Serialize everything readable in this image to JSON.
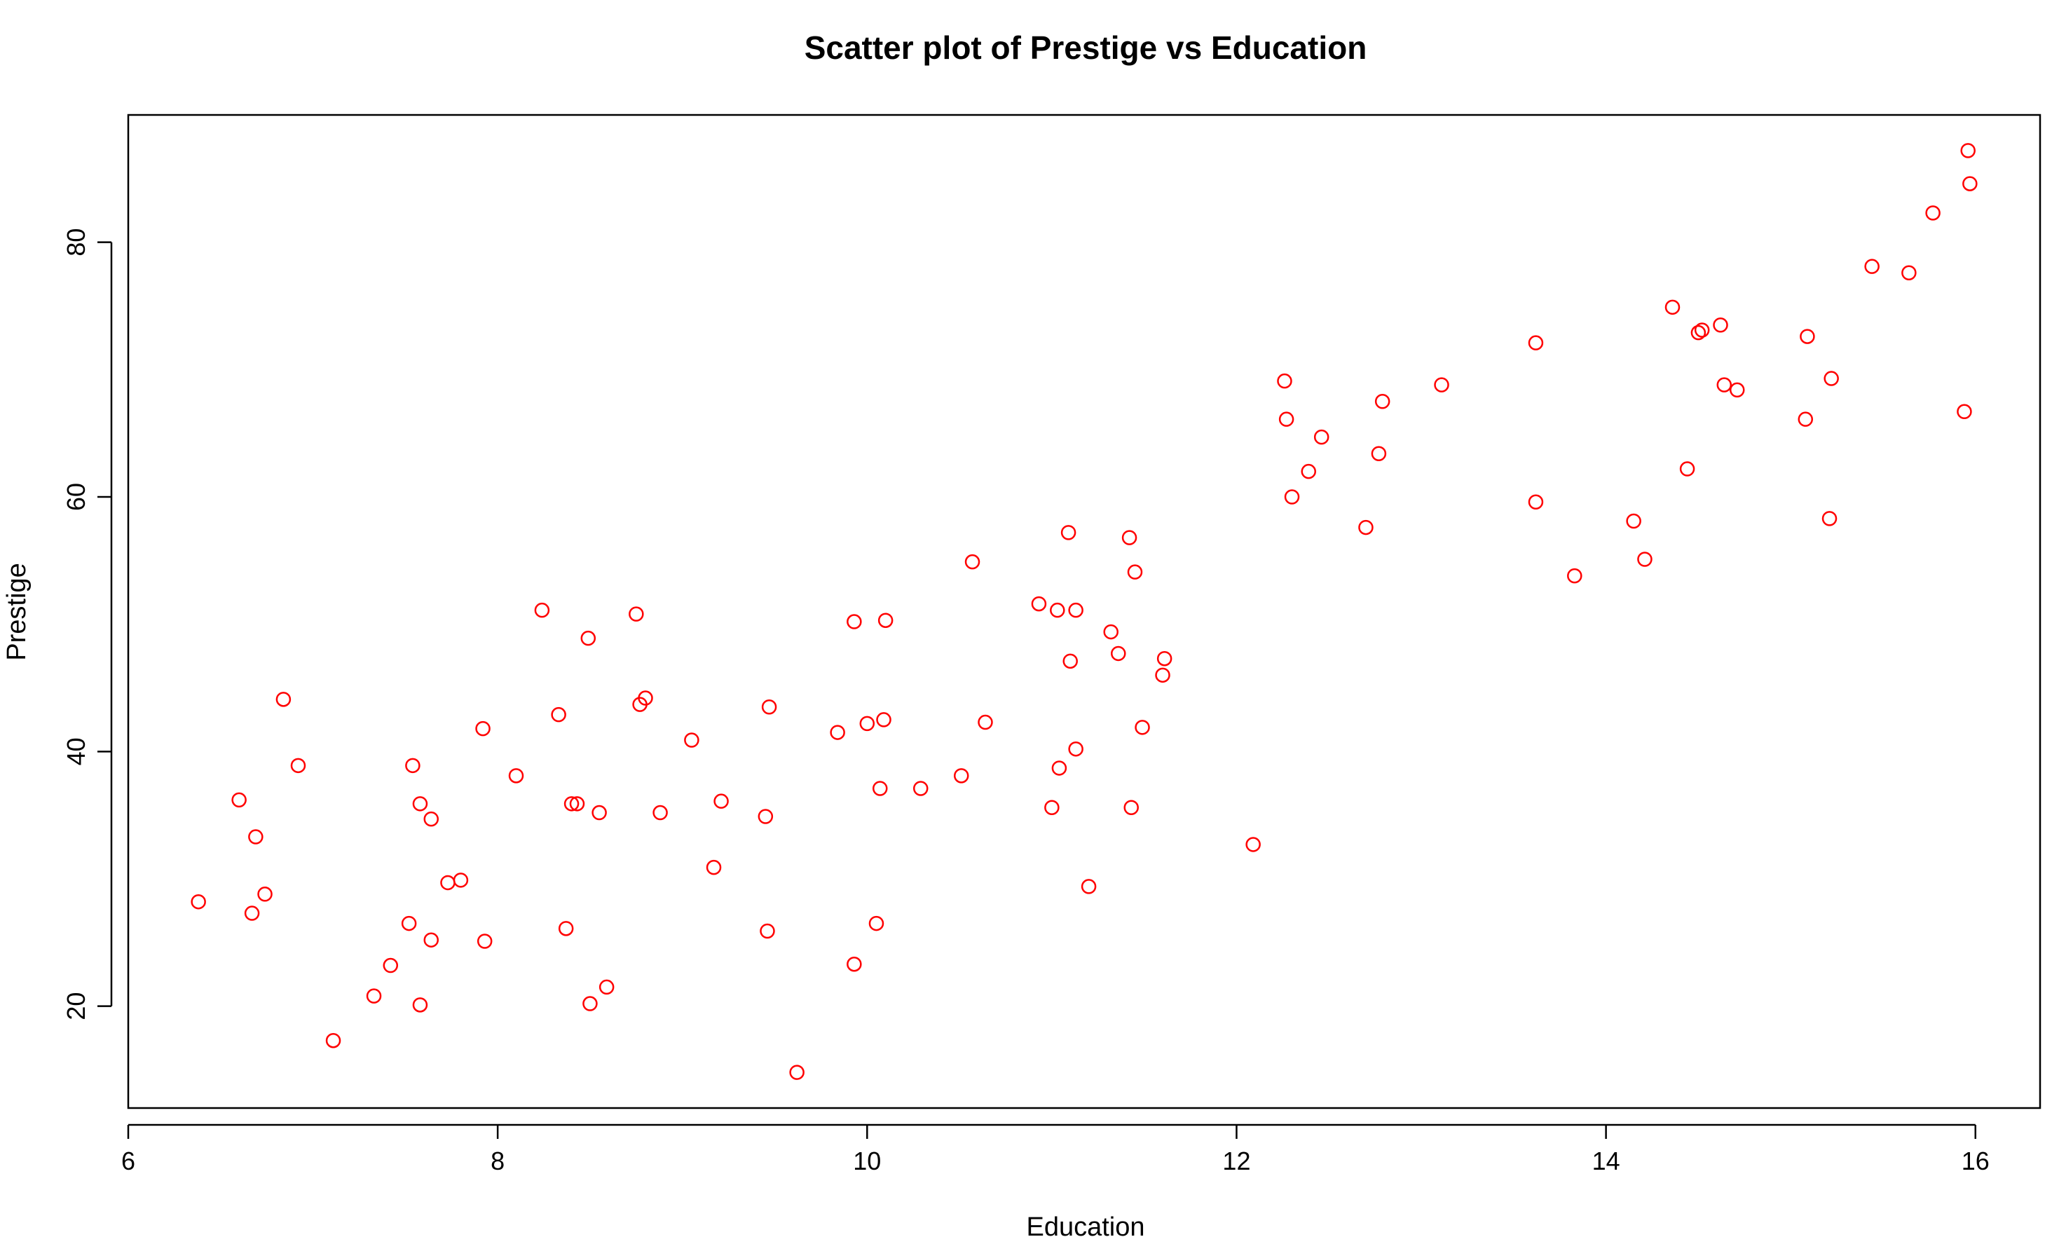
{
  "chart_data": {
    "type": "scatter",
    "title": "Scatter plot of Prestige vs Education",
    "xlabel": "Education",
    "ylabel": "Prestige",
    "xlim": [
      6,
      16.35
    ],
    "ylim": [
      12,
      90
    ],
    "xticks": [
      6,
      8,
      10,
      12,
      14,
      16
    ],
    "yticks": [
      20,
      40,
      60,
      80
    ],
    "grid": false,
    "legend": "none",
    "point_color": "#ff0000",
    "series": [
      {
        "name": "Prestige",
        "x": [
          6.38,
          6.6,
          6.67,
          6.69,
          6.74,
          6.84,
          6.92,
          7.11,
          7.33,
          7.42,
          7.52,
          7.54,
          7.58,
          7.58,
          7.64,
          7.64,
          7.73,
          7.8,
          7.92,
          7.93,
          8.1,
          8.24,
          8.33,
          8.37,
          8.4,
          8.43,
          8.49,
          8.5,
          8.55,
          8.59,
          8.75,
          8.77,
          8.8,
          8.88,
          9.05,
          9.17,
          9.21,
          9.45,
          9.46,
          9.47,
          9.62,
          9.84,
          9.93,
          9.93,
          10.0,
          10.05,
          10.07,
          10.09,
          10.1,
          10.29,
          10.51,
          10.57,
          10.64,
          10.93,
          11.0,
          11.03,
          11.04,
          11.09,
          11.1,
          11.13,
          11.13,
          11.2,
          11.32,
          11.36,
          11.42,
          11.43,
          11.45,
          11.49,
          11.6,
          11.61,
          12.09,
          12.26,
          12.27,
          12.3,
          12.39,
          12.46,
          12.7,
          12.77,
          12.79,
          13.11,
          13.62,
          13.62,
          13.83,
          14.15,
          14.21,
          14.36,
          14.44,
          14.5,
          14.52,
          14.62,
          14.64,
          14.71,
          15.08,
          15.09,
          15.21,
          15.22,
          15.44,
          15.64,
          15.77,
          15.94,
          15.96,
          15.97
        ],
        "y": [
          28.2,
          36.2,
          27.3,
          33.3,
          28.8,
          44.1,
          38.9,
          17.3,
          20.8,
          23.2,
          26.5,
          38.9,
          20.1,
          35.9,
          34.7,
          25.2,
          29.7,
          29.9,
          41.8,
          25.1,
          38.1,
          51.1,
          42.9,
          26.1,
          35.9,
          35.9,
          48.9,
          20.2,
          35.2,
          21.5,
          50.8,
          43.7,
          44.2,
          35.2,
          40.9,
          30.9,
          36.1,
          34.9,
          25.9,
          43.5,
          14.8,
          41.5,
          50.2,
          23.3,
          42.2,
          26.5,
          37.1,
          42.5,
          50.3,
          37.1,
          38.1,
          54.9,
          42.3,
          51.6,
          35.6,
          51.1,
          38.7,
          57.2,
          47.1,
          40.2,
          51.1,
          29.4,
          49.4,
          47.7,
          56.8,
          35.6,
          54.1,
          41.9,
          46.0,
          47.3,
          32.7,
          69.1,
          66.1,
          60.0,
          62.0,
          64.7,
          57.6,
          63.4,
          67.5,
          68.8,
          72.1,
          59.6,
          53.8,
          58.1,
          55.1,
          74.9,
          62.2,
          72.9,
          73.1,
          73.5,
          68.8,
          68.4,
          66.1,
          72.6,
          58.3,
          69.3,
          78.1,
          77.6,
          82.3,
          66.7,
          87.2,
          84.6
        ]
      }
    ]
  }
}
